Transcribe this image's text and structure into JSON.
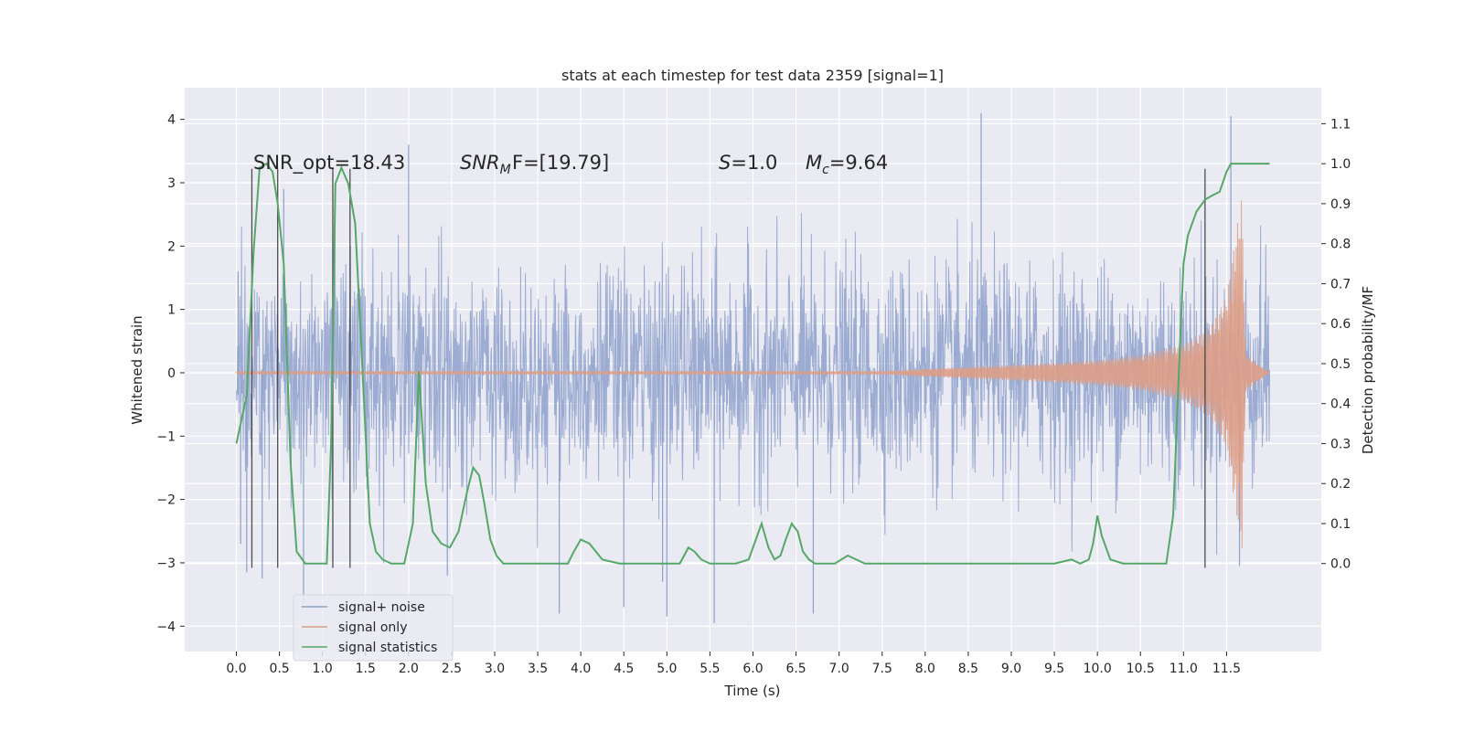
{
  "chart_data": {
    "type": "line",
    "title": "stats at each timestep for test data 2359 [signal=1]",
    "xlabel": "Time (s)",
    "ylabel_left": "Whitened strain",
    "ylabel_right": "Detection probability/MF",
    "xlim": [
      -0.6,
      12.6
    ],
    "ylim_left": [
      -4.4,
      4.5
    ],
    "ylim_right": [
      -0.22,
      1.19
    ],
    "x_ticks": [
      0.0,
      0.5,
      1.0,
      1.5,
      2.0,
      2.5,
      3.0,
      3.5,
      4.0,
      4.5,
      5.0,
      5.5,
      6.0,
      6.5,
      7.0,
      7.5,
      8.0,
      8.5,
      9.0,
      9.5,
      10.0,
      10.5,
      11.0,
      11.5
    ],
    "x_tick_labels": [
      "0.0",
      "0.5",
      "1.0",
      "1.5",
      "2.0",
      "2.5",
      "3.0",
      "3.5",
      "4.0",
      "4.5",
      "5.0",
      "5.5",
      "6.0",
      "6.5",
      "7.0",
      "7.5",
      "8.0",
      "8.5",
      "9.0",
      "9.5",
      "10.0",
      "10.5",
      "11.0",
      "11.5"
    ],
    "y_left_ticks": [
      -4,
      -3,
      -2,
      -1,
      0,
      1,
      2,
      3,
      4
    ],
    "y_left_tick_labels": [
      "−4",
      "−3",
      "−2",
      "−1",
      "0",
      "1",
      "2",
      "3",
      "4"
    ],
    "y_right_ticks": [
      0.0,
      0.1,
      0.2,
      0.3,
      0.4,
      0.5,
      0.6,
      0.7,
      0.8,
      0.9,
      1.0,
      1.1
    ],
    "y_right_tick_labels": [
      "0.0",
      "0.1",
      "0.2",
      "0.3",
      "0.4",
      "0.5",
      "0.6",
      "0.7",
      "0.8",
      "0.9",
      "1.0",
      "1.1"
    ],
    "grid": true,
    "legend_position": "lower-left",
    "annotations": {
      "snr_opt": "SNR_opt=18.43",
      "snr_mf_main": "SNR",
      "snr_mf_sub": "M",
      "snr_mf_rest": "F=[19.79]",
      "s_main": "S",
      "s_rest": "=1.0",
      "mc_main": "M",
      "mc_sub": "c",
      "mc_rest": "=9.64"
    },
    "series": [
      {
        "name": "signal+ noise",
        "color": "#8da0cb",
        "axis": "left",
        "description_range": [
          0.0,
          12.0
        ],
        "noise_std": 1.0,
        "spikes": [
          [
            0.02,
            1.6
          ],
          [
            0.05,
            -2.7
          ],
          [
            0.12,
            -3.15
          ],
          [
            0.3,
            -3.25
          ],
          [
            0.55,
            2.9
          ],
          [
            0.78,
            -3.65
          ],
          [
            2.0,
            3.6
          ],
          [
            2.45,
            -3.2
          ],
          [
            3.75,
            -3.8
          ],
          [
            4.5,
            -3.7
          ],
          [
            4.95,
            -3.3
          ],
          [
            5.0,
            -3.85
          ],
          [
            5.55,
            -3.95
          ],
          [
            6.7,
            -3.8
          ],
          [
            8.65,
            4.1
          ],
          [
            11.55,
            4.05
          ],
          [
            11.65,
            -3.05
          ]
        ]
      },
      {
        "name": "signal only",
        "color": "#dd9d86",
        "axis": "left",
        "envelope": [
          [
            0.0,
            0.02
          ],
          [
            7.5,
            0.02
          ],
          [
            8.0,
            0.06
          ],
          [
            9.0,
            0.12
          ],
          [
            10.0,
            0.2
          ],
          [
            10.5,
            0.28
          ],
          [
            11.0,
            0.45
          ],
          [
            11.3,
            0.7
          ],
          [
            11.5,
            1.2
          ],
          [
            11.62,
            2.3
          ],
          [
            11.68,
            2.8
          ],
          [
            11.72,
            0.3
          ],
          [
            12.0,
            0.0
          ]
        ]
      },
      {
        "name": "signal statistics",
        "color": "#55a868",
        "axis": "right",
        "x": [
          0.0,
          0.12,
          0.2,
          0.27,
          0.35,
          0.42,
          0.48,
          0.55,
          0.63,
          0.7,
          0.8,
          0.95,
          1.05,
          1.1,
          1.15,
          1.22,
          1.3,
          1.38,
          1.45,
          1.55,
          1.62,
          1.7,
          1.8,
          1.95,
          2.05,
          2.12,
          2.2,
          2.28,
          2.38,
          2.48,
          2.58,
          2.68,
          2.75,
          2.82,
          2.88,
          2.95,
          3.02,
          3.1,
          3.25,
          3.5,
          3.85,
          3.92,
          4.0,
          4.1,
          4.25,
          4.45,
          5.0,
          5.15,
          5.25,
          5.32,
          5.4,
          5.5,
          5.8,
          5.95,
          6.05,
          6.1,
          6.18,
          6.25,
          6.32,
          6.38,
          6.45,
          6.52,
          6.58,
          6.65,
          6.72,
          6.8,
          6.95,
          7.1,
          7.2,
          7.3,
          7.45,
          8.0,
          9.0,
          9.2,
          9.5,
          9.7,
          9.8,
          9.9,
          9.95,
          10.0,
          10.05,
          10.15,
          10.3,
          10.6,
          10.8,
          10.88,
          10.95,
          11.0,
          11.05,
          11.15,
          11.25,
          11.33,
          11.42,
          11.5,
          11.55,
          11.6,
          11.65,
          11.75,
          11.9,
          12.0
        ],
        "y": [
          0.3,
          0.42,
          0.78,
          0.99,
          1.0,
          0.98,
          0.9,
          0.75,
          0.25,
          0.03,
          0.0,
          0.0,
          0.0,
          0.3,
          0.95,
          0.99,
          0.95,
          0.85,
          0.55,
          0.1,
          0.03,
          0.01,
          0.0,
          0.0,
          0.1,
          0.48,
          0.2,
          0.08,
          0.05,
          0.04,
          0.08,
          0.18,
          0.24,
          0.22,
          0.15,
          0.06,
          0.02,
          0.0,
          0.0,
          0.0,
          0.0,
          0.03,
          0.06,
          0.05,
          0.01,
          0.0,
          0.0,
          0.0,
          0.04,
          0.03,
          0.01,
          0.0,
          0.0,
          0.01,
          0.07,
          0.1,
          0.04,
          0.01,
          0.02,
          0.06,
          0.1,
          0.08,
          0.03,
          0.01,
          0.0,
          0.0,
          0.0,
          0.02,
          0.01,
          0.0,
          0.0,
          0.0,
          0.0,
          0.0,
          0.0,
          0.01,
          0.0,
          0.01,
          0.05,
          0.12,
          0.07,
          0.01,
          0.0,
          0.0,
          0.0,
          0.12,
          0.5,
          0.75,
          0.82,
          0.88,
          0.91,
          0.92,
          0.93,
          0.98,
          1.0,
          1.0,
          1.0,
          1.0,
          1.0,
          1.0
        ]
      }
    ],
    "vertical_lines": [
      {
        "x": 0.18,
        "y_from": -3.08,
        "y_to": 3.22
      },
      {
        "x": 0.48,
        "y_from": -3.08,
        "y_to": 3.22
      },
      {
        "x": 1.12,
        "y_from": -3.08,
        "y_to": 3.22
      },
      {
        "x": 1.32,
        "y_from": -3.08,
        "y_to": 3.22
      },
      {
        "x": 11.25,
        "y_from": -3.08,
        "y_to": 3.22
      }
    ]
  }
}
